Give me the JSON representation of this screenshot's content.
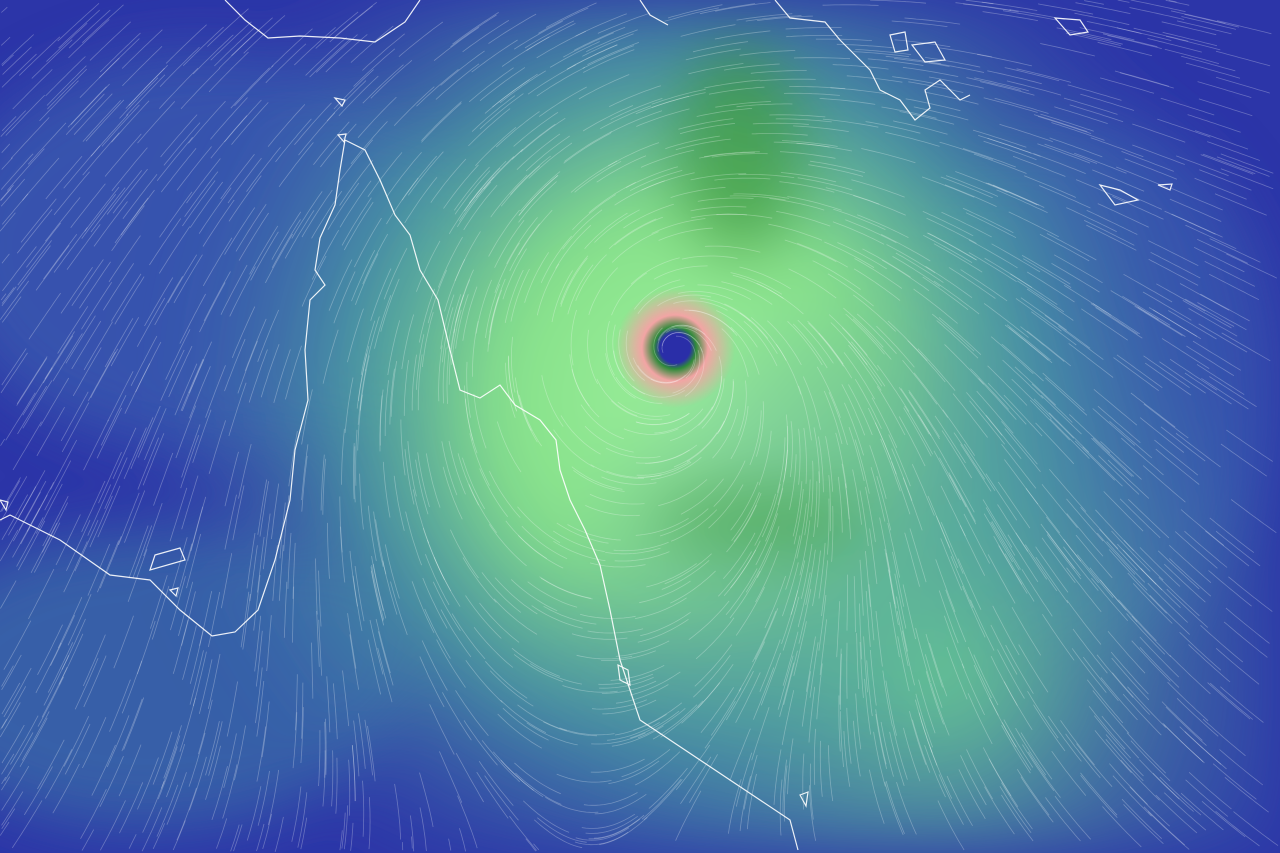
{
  "map": {
    "type": "wind-speed-overlay",
    "feature": "tropical-cyclone",
    "colors": {
      "calm": "#2a2ea8",
      "moderate": "#4a86a8",
      "strong": "#8fe88a",
      "very_strong": "#3e9a3a",
      "extreme": "#f0a0a0",
      "eye": "#2a2ea8",
      "coastline": "#ffffff",
      "streamline": "#ffffff"
    }
  }
}
